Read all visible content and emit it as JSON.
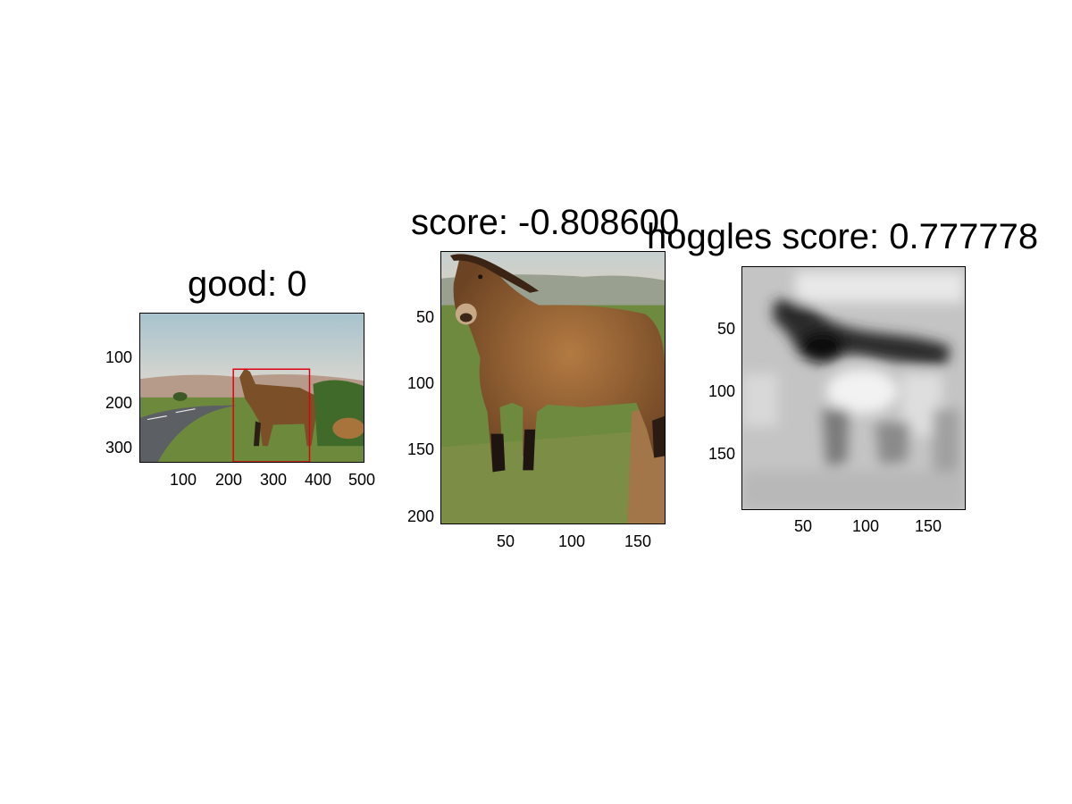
{
  "figure": {
    "panel1": {
      "title": "good: 0",
      "xticks": [
        "100",
        "200",
        "300",
        "400",
        "500"
      ],
      "yticks": [
        "100",
        "200",
        "300"
      ]
    },
    "panel2": {
      "title": "score: -0.808600",
      "xticks": [
        "50",
        "100",
        "150"
      ],
      "yticks": [
        "50",
        "100",
        "150",
        "200"
      ]
    },
    "panel3": {
      "title": "hoggles score: 0.777778",
      "xticks": [
        "50",
        "100",
        "150"
      ],
      "yticks": [
        "50",
        "100",
        "150"
      ]
    }
  },
  "colors": {
    "box": "#e0000f",
    "sky": "#a9c3cc",
    "grass": "#6f8a3a",
    "horse": "#8a5a2b"
  }
}
